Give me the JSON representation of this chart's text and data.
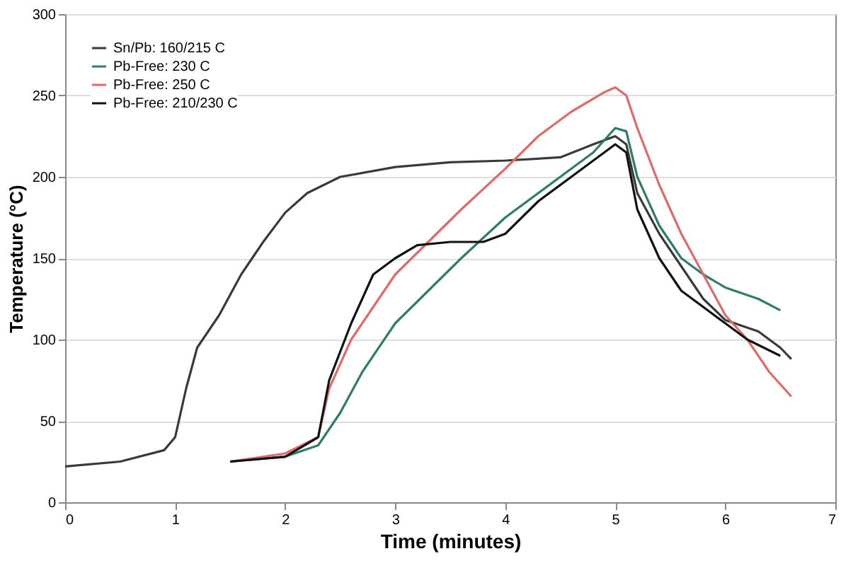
{
  "chart_data": {
    "type": "line",
    "xlabel": "Time (minutes)",
    "ylabel": "Temperature (°C)",
    "xlim": [
      0,
      7
    ],
    "ylim": [
      0,
      300
    ],
    "xticks": [
      0,
      1,
      2,
      3,
      4,
      5,
      6,
      7
    ],
    "yticks": [
      0,
      50,
      100,
      150,
      200,
      250,
      300
    ],
    "grid": "y",
    "legend": "top left",
    "line_style": "solid",
    "marker": "none",
    "series": [
      {
        "name": "Sn/Pb: 160/215 C",
        "color": "#3a3a3a",
        "x": [
          0,
          0.5,
          0.9,
          1.0,
          1.1,
          1.2,
          1.4,
          1.6,
          1.8,
          2.0,
          2.2,
          2.5,
          3.0,
          3.5,
          4.0,
          4.5,
          4.8,
          5.0,
          5.1,
          5.2,
          5.4,
          5.6,
          5.8,
          6.0,
          6.3,
          6.5,
          6.6
        ],
        "values": [
          22,
          25,
          32,
          40,
          70,
          95,
          115,
          140,
          160,
          178,
          190,
          200,
          206,
          209,
          210,
          212,
          220,
          225,
          220,
          190,
          165,
          145,
          125,
          112,
          105,
          95,
          88
        ]
      },
      {
        "name": "Pb-Free: 230 C",
        "color": "#2e7d6a",
        "x": [
          1.5,
          2.0,
          2.3,
          2.5,
          2.7,
          3.0,
          3.3,
          3.6,
          4.0,
          4.5,
          4.8,
          5.0,
          5.1,
          5.2,
          5.4,
          5.6,
          5.8,
          6.0,
          6.3,
          6.5
        ],
        "values": [
          25,
          28,
          35,
          55,
          80,
          110,
          130,
          150,
          175,
          200,
          215,
          230,
          228,
          200,
          170,
          150,
          140,
          132,
          125,
          118
        ]
      },
      {
        "name": "Pb-Free: 250 C",
        "color": "#e06a6a",
        "x": [
          1.5,
          2.0,
          2.3,
          2.4,
          2.6,
          2.8,
          3.0,
          3.3,
          3.6,
          4.0,
          4.3,
          4.6,
          4.9,
          5.0,
          5.1,
          5.2,
          5.4,
          5.6,
          5.8,
          6.0,
          6.2,
          6.4,
          6.6
        ],
        "values": [
          25,
          30,
          40,
          70,
          100,
          120,
          140,
          160,
          180,
          205,
          225,
          240,
          252,
          255,
          250,
          230,
          195,
          165,
          140,
          115,
          100,
          80,
          65
        ]
      },
      {
        "name": "Pb-Free: 210/230 C",
        "color": "#111111",
        "x": [
          1.5,
          2.0,
          2.3,
          2.4,
          2.6,
          2.8,
          3.0,
          3.2,
          3.5,
          3.8,
          4.0,
          4.3,
          4.6,
          4.9,
          5.0,
          5.1,
          5.2,
          5.4,
          5.6,
          5.8,
          6.0,
          6.2,
          6.5
        ],
        "values": [
          25,
          28,
          40,
          75,
          110,
          140,
          150,
          158,
          160,
          160,
          165,
          185,
          200,
          215,
          220,
          215,
          180,
          150,
          130,
          120,
          110,
          100,
          90
        ]
      }
    ]
  }
}
